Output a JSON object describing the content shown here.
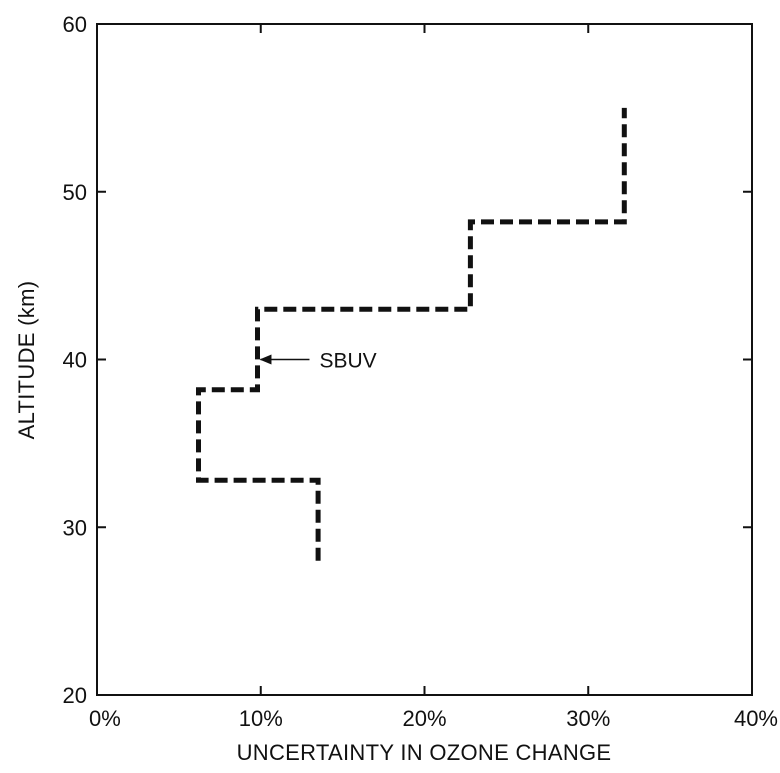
{
  "chart_data": {
    "type": "line",
    "title": "",
    "xlabel": "UNCERTAINTY IN OZONE CHANGE",
    "ylabel": "ALTITUDE (km)",
    "xlim": [
      0,
      40
    ],
    "ylim": [
      20,
      60
    ],
    "x_unit": "%",
    "x_ticks": [
      0,
      10,
      20,
      30,
      40
    ],
    "y_ticks": [
      20,
      30,
      40,
      50,
      60
    ],
    "x_tick_labels": [
      "0%",
      "10%",
      "20%",
      "30%",
      "40%"
    ],
    "y_tick_labels": [
      "20",
      "30",
      "40",
      "50",
      "60"
    ],
    "grid": false,
    "legend": "none",
    "series": [
      {
        "name": "SBUV",
        "line_style": "dashed",
        "color": "#111111",
        "points": [
          {
            "x": 13.5,
            "y": 28
          },
          {
            "x": 13.5,
            "y": 32.8
          },
          {
            "x": 6.2,
            "y": 32.8
          },
          {
            "x": 6.2,
            "y": 38.2
          },
          {
            "x": 9.8,
            "y": 38.2
          },
          {
            "x": 9.8,
            "y": 43
          },
          {
            "x": 22.8,
            "y": 43
          },
          {
            "x": 22.8,
            "y": 48.2
          },
          {
            "x": 32.2,
            "y": 48.2
          },
          {
            "x": 32.2,
            "y": 55
          }
        ]
      }
    ],
    "annotations": [
      {
        "text": "SBUV",
        "arrow_to": {
          "x": 9.8,
          "y": 40
        }
      }
    ]
  }
}
